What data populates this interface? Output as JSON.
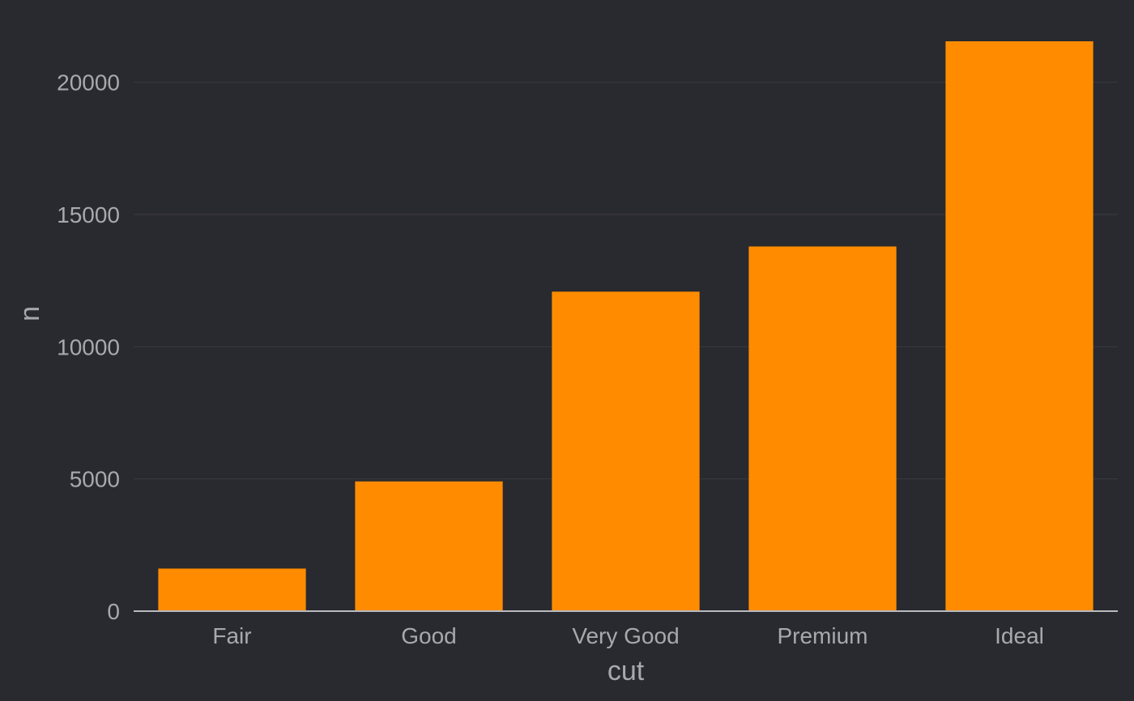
{
  "colors": {
    "background": "#292a2f",
    "bar": "#ff8c00",
    "grid": "#3a3b40",
    "text": "#a8a9ad",
    "axis": "#b9babd"
  },
  "chart_data": {
    "type": "bar",
    "title": "",
    "xlabel": "cut",
    "ylabel": "n",
    "categories": [
      "Fair",
      "Good",
      "Very Good",
      "Premium",
      "Ideal"
    ],
    "values": [
      1610,
      4906,
      12082,
      13791,
      21551
    ],
    "ylim": [
      0,
      22500
    ],
    "yticks": [
      0,
      5000,
      10000,
      15000,
      20000
    ],
    "ytick_labels": [
      "0",
      "5000",
      "10000",
      "15000",
      "20000"
    ],
    "grid": true,
    "legend": "none"
  }
}
